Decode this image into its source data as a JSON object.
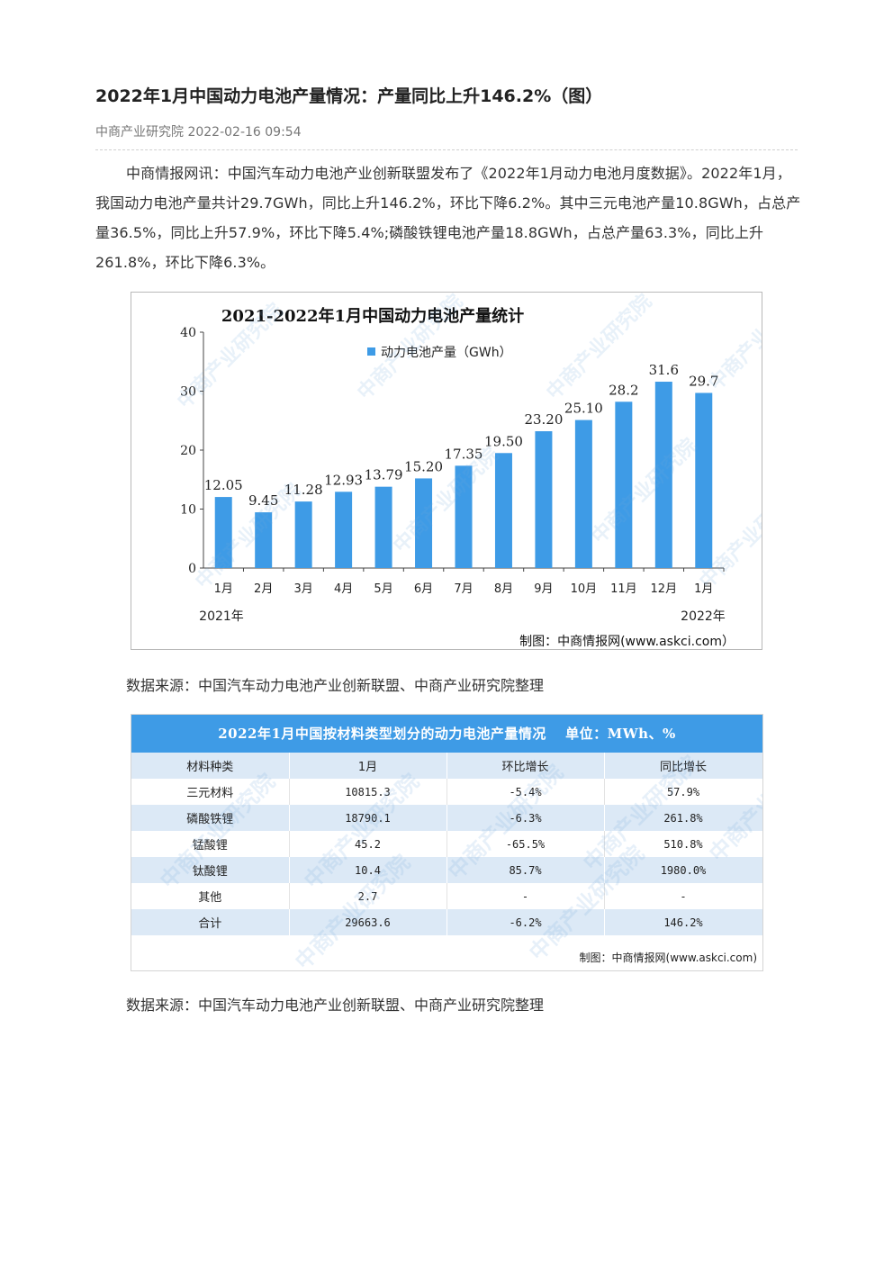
{
  "article": {
    "title": "2022年1月中国动力电池产量情况：产量同比上升146.2%（图）",
    "source": "中商产业研究院",
    "datetime": "2022-02-16 09:54",
    "body": "中商情报网讯：中国汽车动力电池产业创新联盟发布了《2022年1月动力电池月度数据》。2022年1月，我国动力电池产量共计29.7GWh，同比上升146.2%，环比下降6.2%。其中三元电池产量10.8GWh，占总产量36.5%，同比上升57.9%，环比下降5.4%;磷酸铁锂电池产量18.8GWh，占总产量63.3%，同比上升261.8%，环比下降6.3%。",
    "data_source_1": "数据来源：中国汽车动力电池产业创新联盟、中商产业研究院整理",
    "data_source_2": "数据来源：中国汽车动力电池产业创新联盟、中商产业研究院整理"
  },
  "chart_data": {
    "type": "bar",
    "title": "2021-2022年1月中国动力电池产量统计",
    "legend": "动力电池产量（GWh）",
    "legend_position": "top",
    "categories": [
      "1月",
      "2月",
      "3月",
      "4月",
      "5月",
      "6月",
      "7月",
      "8月",
      "9月",
      "10月",
      "11月",
      "12月",
      "1月"
    ],
    "values": [
      12.05,
      9.45,
      11.28,
      12.93,
      13.79,
      15.2,
      17.35,
      19.5,
      23.2,
      25.1,
      28.2,
      31.6,
      29.7
    ],
    "value_labels": [
      "12.05",
      "9.45",
      "11.28",
      "12.93",
      "13.79",
      "15.20",
      "17.35",
      "19.50",
      "23.20",
      "25.10",
      "28.2",
      "31.6",
      "29.7"
    ],
    "y_ticks": [
      "0",
      "10",
      "20",
      "30",
      "40"
    ],
    "ylim": [
      0,
      40
    ],
    "year_labels": [
      "2021年",
      "2022年"
    ],
    "credit": "制图：中商情报网(www.askci.com）",
    "bar_color": "#3e9be6",
    "grid": false
  },
  "table": {
    "title": "2022年1月中国按材料类型划分的动力电池产量情况　 单位：MWh、%",
    "headers": [
      "材料种类",
      "1月",
      "环比增长",
      "同比增长"
    ],
    "rows": [
      [
        "三元材料",
        "10815.3",
        "-5.4%",
        "57.9%"
      ],
      [
        "磷酸铁锂",
        "18790.1",
        "-6.3%",
        "261.8%"
      ],
      [
        "锰酸锂",
        "45.2",
        "-65.5%",
        "510.8%"
      ],
      [
        "钛酸锂",
        "10.4",
        "85.7%",
        "1980.0%"
      ],
      [
        "其他",
        "2.7",
        "-",
        "-"
      ],
      [
        "合计",
        "29663.6",
        "-6.2%",
        "146.2%"
      ]
    ],
    "credit": "制图：中商情报网(www.askci.com)",
    "header_color": "#3e9be6",
    "stripe_color": "#dce9f6"
  },
  "watermark": "中商产业研究院"
}
